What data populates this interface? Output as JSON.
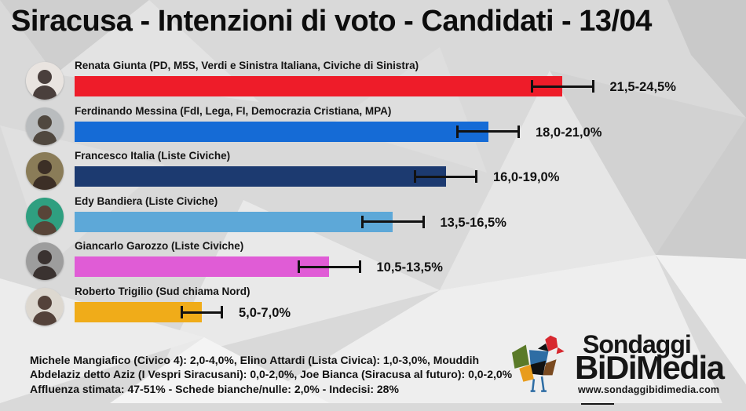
{
  "title": "Siracusa - Intenzioni di voto - Candidati - 13/04",
  "chart_data": {
    "type": "bar",
    "orientation": "horizontal",
    "unit": "%",
    "xlim": [
      0,
      30
    ],
    "note": "each bar drawn to midpoint of range, with error bar from low to high",
    "categories": [
      "Renata Giunta",
      "Ferdinando Messina",
      "Francesco Italia",
      "Edy Bandiera",
      "Giancarlo Garozzo",
      "Roberto Trigilio"
    ],
    "candidates": [
      {
        "name": "Renata Giunta (PD, M5S, Verdi e Sinistra Italiana, Civiche di Sinistra)",
        "low": 21.5,
        "high": 24.5,
        "range_label": "21,5-24,5%",
        "color": "#ee1c29",
        "avatar_bg": "#e9e4e0",
        "avatar_fg": "#4a3f3c"
      },
      {
        "name": "Ferdinando Messina (FdI, Lega, FI, Democrazia Cristiana, MPA)",
        "low": 18.0,
        "high": 21.0,
        "range_label": "18,0-21,0%",
        "color": "#156bd6",
        "avatar_bg": "#b9bcbe",
        "avatar_fg": "#50483f"
      },
      {
        "name": "Francesco Italia (Liste Civiche)",
        "low": 16.0,
        "high": 19.0,
        "range_label": "16,0-19,0%",
        "color": "#1c3a70",
        "avatar_bg": "#8a7c58",
        "avatar_fg": "#3c2f26"
      },
      {
        "name": "Edy Bandiera (Liste Civiche)",
        "low": 13.5,
        "high": 16.5,
        "range_label": "13,5-16,5%",
        "color": "#5da8d8",
        "avatar_bg": "#2f9f80",
        "avatar_fg": "#584438"
      },
      {
        "name": "Giancarlo Garozzo (Liste Civiche)",
        "low": 10.5,
        "high": 13.5,
        "range_label": "10,5-13,5%",
        "color": "#e05cd6",
        "avatar_bg": "#9d9d9d",
        "avatar_fg": "#3a3230"
      },
      {
        "name": "Roberto Trigilio (Sud chiama Nord)",
        "low": 5.0,
        "high": 7.0,
        "range_label": "5,0-7,0%",
        "color": "#f0ac19",
        "avatar_bg": "#ddd8d0",
        "avatar_fg": "#54423a"
      }
    ]
  },
  "footer": {
    "others": "Michele Mangiafico (Civico 4): 2,0-4,0%, Elino Attardi (Lista Civica): 1,0-3,0%, Mouddih Abdelaziz detto Aziz (I Vespri Siracusani): 0,0-2,0%, Joe Bianca (Siracusa al futuro): 0,0-2,0%",
    "stats": "Affluenza stimata: 47-51% - Schede bianche/nulle: 2,0% - Indecisi: 28%"
  },
  "logo": {
    "line1": "Sondaggi",
    "line2": "BiDiMedia",
    "url": "www.sondaggibidimedia.com"
  }
}
